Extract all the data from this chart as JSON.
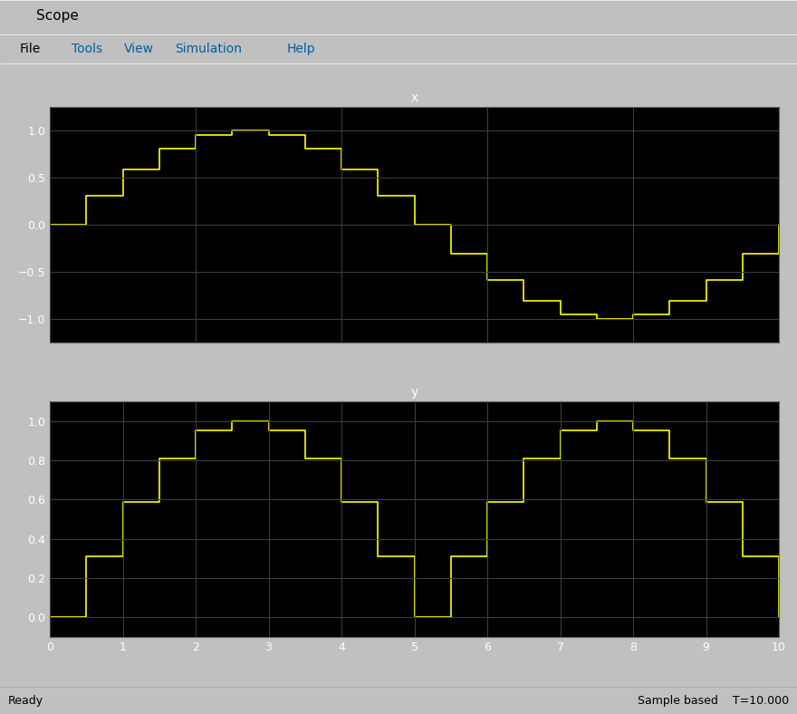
{
  "title": "Scope",
  "plot1_title": "x",
  "plot2_title": "y",
  "xlabel": "",
  "xlim": [
    0,
    10
  ],
  "plot1_ylim": [
    -1.25,
    1.25
  ],
  "plot2_ylim": [
    -0.1,
    1.1
  ],
  "plot1_yticks": [
    -1,
    -0.5,
    0,
    0.5,
    1
  ],
  "plot2_yticks": [
    0,
    0.2,
    0.4,
    0.6,
    0.8,
    1.0
  ],
  "xticks": [
    0,
    1,
    2,
    3,
    4,
    5,
    6,
    7,
    8,
    9,
    10
  ],
  "line_color": "#ffff00",
  "bg_color": "#000000",
  "frame_bg": "#d4d0c8",
  "grid_color": "#404040",
  "n_samples": 20,
  "period": 10,
  "status_left": "Ready",
  "status_right": "Sample based    T=10.000"
}
